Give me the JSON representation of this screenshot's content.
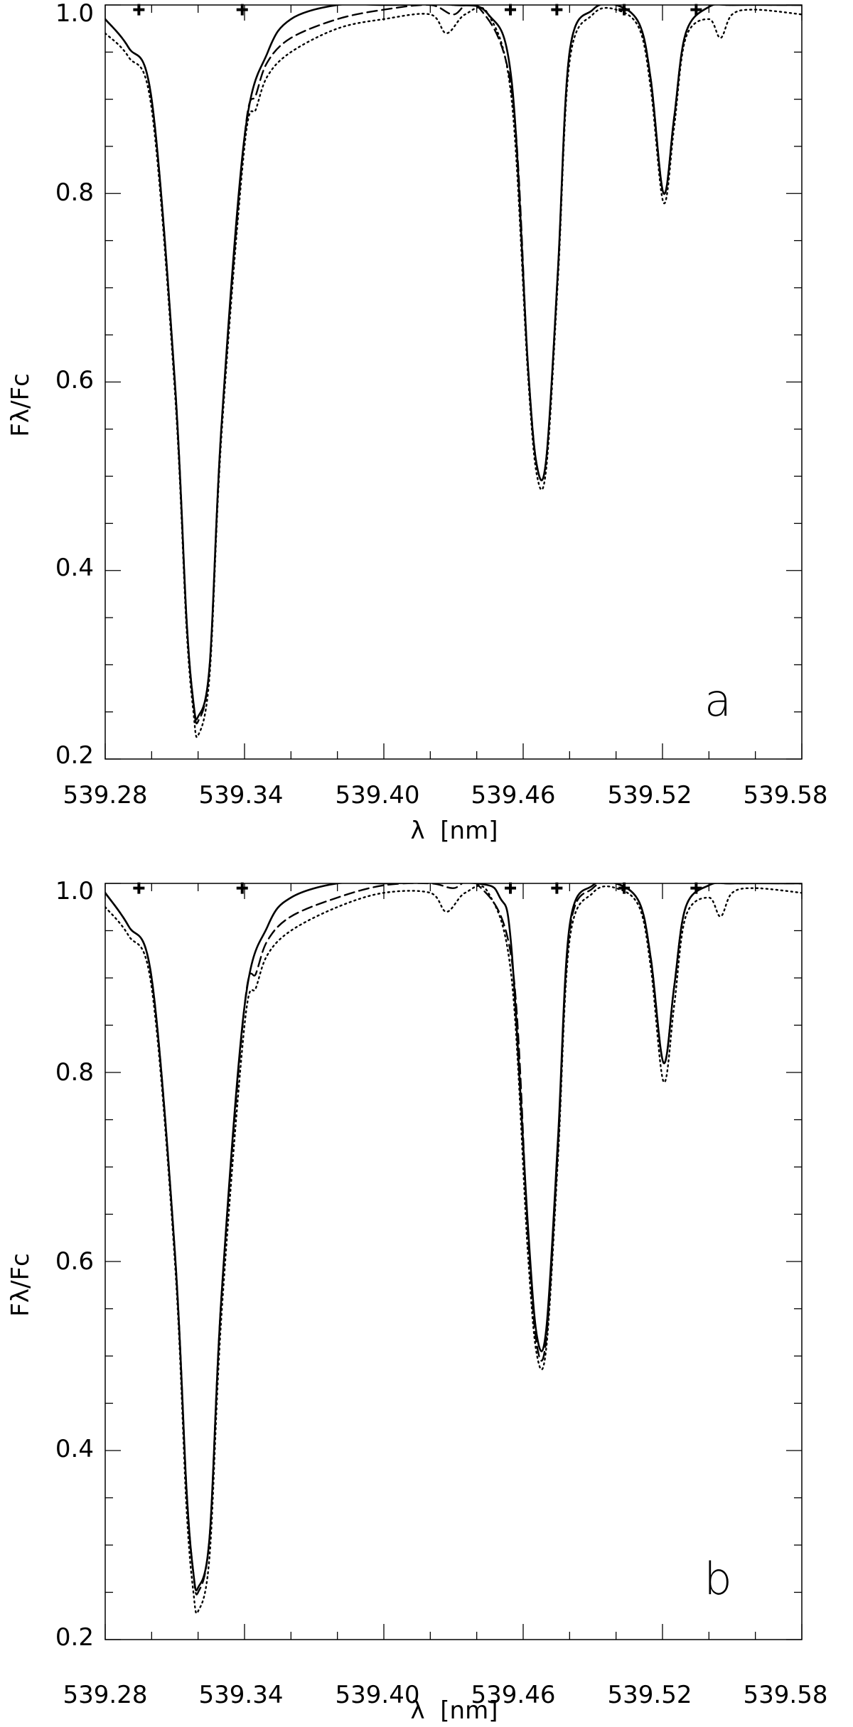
{
  "chart_data": [
    {
      "type": "line",
      "panel_label": "a",
      "xlabel": "λ  [nm]",
      "ylabel": "Fλ/Fc",
      "xlim": [
        539.28,
        539.58
      ],
      "ylim": [
        0.2,
        1.0
      ],
      "x_ticks": [
        "539.28",
        "539.34",
        "539.40",
        "539.46",
        "539.52",
        "539.58"
      ],
      "y_ticks": [
        "0.2",
        "0.4",
        "0.6",
        "0.8",
        "1.0"
      ],
      "grid": false,
      "series": [
        {
          "style": "solid",
          "x": [
            539.28,
            539.29,
            539.3,
            539.31,
            539.315,
            539.318,
            539.32,
            539.325,
            539.33,
            539.34,
            539.35,
            539.36,
            539.38,
            539.4,
            539.43,
            539.445,
            539.455,
            539.462,
            539.466,
            539.47,
            539.475,
            539.48,
            539.49,
            539.5,
            539.51,
            539.515,
            539.5205,
            539.525,
            539.53,
            539.54,
            539.55,
            539.58
          ],
          "y": [
            0.985,
            0.955,
            0.9,
            0.6,
            0.35,
            0.26,
            0.245,
            0.3,
            0.55,
            0.86,
            0.95,
            0.985,
            1.0,
            1.0,
            1.0,
            0.99,
            0.92,
            0.62,
            0.51,
            0.52,
            0.72,
            0.95,
            0.995,
            1.0,
            0.98,
            0.92,
            0.8,
            0.88,
            0.97,
            0.998,
            1.0,
            1.0
          ]
        },
        {
          "style": "dashed",
          "x": [
            539.28,
            539.29,
            539.3,
            539.31,
            539.315,
            539.318,
            539.32,
            539.325,
            539.33,
            539.34,
            539.345,
            539.35,
            539.36,
            539.38,
            539.4,
            539.42,
            539.43,
            539.44,
            539.455,
            539.462,
            539.466,
            539.47,
            539.475,
            539.48,
            539.49,
            539.5,
            539.51,
            539.515,
            539.5205,
            539.525,
            539.53,
            539.54,
            539.55,
            539.58
          ],
          "y": [
            0.985,
            0.955,
            0.9,
            0.6,
            0.35,
            0.26,
            0.24,
            0.3,
            0.55,
            0.86,
            0.905,
            0.94,
            0.965,
            0.985,
            0.995,
            1.0,
            0.99,
            1.0,
            0.91,
            0.62,
            0.51,
            0.52,
            0.72,
            0.95,
            0.995,
            1.0,
            0.98,
            0.92,
            0.8,
            0.88,
            0.97,
            0.998,
            1.0,
            1.0
          ]
        },
        {
          "style": "dotted",
          "x": [
            539.28,
            539.29,
            539.3,
            539.31,
            539.315,
            539.318,
            539.32,
            539.325,
            539.33,
            539.34,
            539.345,
            539.35,
            539.36,
            539.38,
            539.4,
            539.42,
            539.427,
            539.435,
            539.445,
            539.455,
            539.462,
            539.466,
            539.47,
            539.475,
            539.48,
            539.49,
            539.5,
            539.51,
            539.515,
            539.5205,
            539.525,
            539.53,
            539.54,
            539.545,
            539.55,
            539.56,
            539.58
          ],
          "y": [
            0.97,
            0.945,
            0.89,
            0.59,
            0.34,
            0.25,
            0.225,
            0.29,
            0.54,
            0.85,
            0.89,
            0.925,
            0.95,
            0.975,
            0.985,
            0.99,
            0.97,
            0.99,
            0.99,
            0.9,
            0.61,
            0.5,
            0.51,
            0.71,
            0.94,
            0.99,
            0.995,
            0.975,
            0.91,
            0.79,
            0.87,
            0.965,
            0.985,
            0.965,
            0.99,
            0.995,
            0.99
          ]
        }
      ],
      "markers": {
        "symbol": "+",
        "x": [
          539.2945,
          539.339,
          539.4545,
          539.4745,
          539.5035,
          539.5345
        ],
        "y": [
          0.995,
          0.995,
          0.995,
          0.995,
          0.995,
          0.995
        ]
      }
    },
    {
      "type": "line",
      "panel_label": "b",
      "xlabel": "λ  [nm]",
      "ylabel": "Fλ/Fc",
      "xlim": [
        539.28,
        539.58
      ],
      "ylim": [
        0.2,
        1.0
      ],
      "x_ticks": [
        "539.28",
        "539.34",
        "539.40",
        "539.46",
        "539.52",
        "539.58"
      ],
      "y_ticks": [
        "0.2",
        "0.4",
        "0.6",
        "0.8",
        "1.0"
      ],
      "grid": false,
      "series": [
        {
          "style": "solid",
          "x": [
            539.28,
            539.29,
            539.3,
            539.31,
            539.315,
            539.318,
            539.32,
            539.325,
            539.33,
            539.34,
            539.35,
            539.36,
            539.38,
            539.4,
            539.44,
            539.45,
            539.455,
            539.462,
            539.466,
            539.47,
            539.475,
            539.48,
            539.49,
            539.5,
            539.51,
            539.515,
            539.5205,
            539.525,
            539.53,
            539.54,
            539.55,
            539.58
          ],
          "y": [
            0.99,
            0.955,
            0.9,
            0.61,
            0.36,
            0.27,
            0.255,
            0.31,
            0.56,
            0.87,
            0.955,
            0.985,
            1.0,
            1.0,
            1.0,
            0.985,
            0.93,
            0.64,
            0.52,
            0.53,
            0.73,
            0.955,
            0.998,
            1.0,
            0.98,
            0.92,
            0.81,
            0.89,
            0.975,
            0.998,
            1.0,
            1.0
          ]
        },
        {
          "style": "dashed",
          "x": [
            539.28,
            539.29,
            539.3,
            539.31,
            539.315,
            539.318,
            539.32,
            539.325,
            539.33,
            539.34,
            539.345,
            539.35,
            539.36,
            539.38,
            539.4,
            539.42,
            539.43,
            539.44,
            539.455,
            539.462,
            539.466,
            539.47,
            539.475,
            539.48,
            539.49,
            539.5,
            539.51,
            539.515,
            539.5205,
            539.525,
            539.53,
            539.54,
            539.55,
            539.58
          ],
          "y": [
            0.99,
            0.955,
            0.9,
            0.61,
            0.36,
            0.27,
            0.25,
            0.31,
            0.56,
            0.87,
            0.905,
            0.94,
            0.965,
            0.985,
            0.998,
            1.0,
            0.995,
            1.0,
            0.92,
            0.63,
            0.51,
            0.52,
            0.72,
            0.95,
            0.995,
            1.0,
            0.98,
            0.92,
            0.81,
            0.89,
            0.975,
            0.998,
            1.0,
            1.0
          ]
        },
        {
          "style": "dotted",
          "x": [
            539.28,
            539.29,
            539.3,
            539.31,
            539.315,
            539.318,
            539.32,
            539.325,
            539.33,
            539.34,
            539.345,
            539.35,
            539.36,
            539.38,
            539.4,
            539.42,
            539.427,
            539.435,
            539.445,
            539.455,
            539.462,
            539.466,
            539.47,
            539.475,
            539.48,
            539.49,
            539.5,
            539.51,
            539.515,
            539.5205,
            539.525,
            539.53,
            539.54,
            539.545,
            539.55,
            539.56,
            539.58
          ],
          "y": [
            0.975,
            0.945,
            0.89,
            0.6,
            0.34,
            0.25,
            0.23,
            0.29,
            0.54,
            0.85,
            0.89,
            0.925,
            0.95,
            0.975,
            0.99,
            0.99,
            0.97,
            0.99,
            0.99,
            0.9,
            0.61,
            0.5,
            0.51,
            0.71,
            0.94,
            0.99,
            0.995,
            0.975,
            0.91,
            0.79,
            0.87,
            0.965,
            0.985,
            0.965,
            0.99,
            0.995,
            0.99
          ]
        }
      ],
      "markers": {
        "symbol": "+",
        "x": [
          539.2945,
          539.339,
          539.4545,
          539.4745,
          539.5035,
          539.5345
        ],
        "y": [
          0.995,
          0.995,
          0.995,
          0.995,
          0.995,
          0.995
        ]
      }
    }
  ]
}
